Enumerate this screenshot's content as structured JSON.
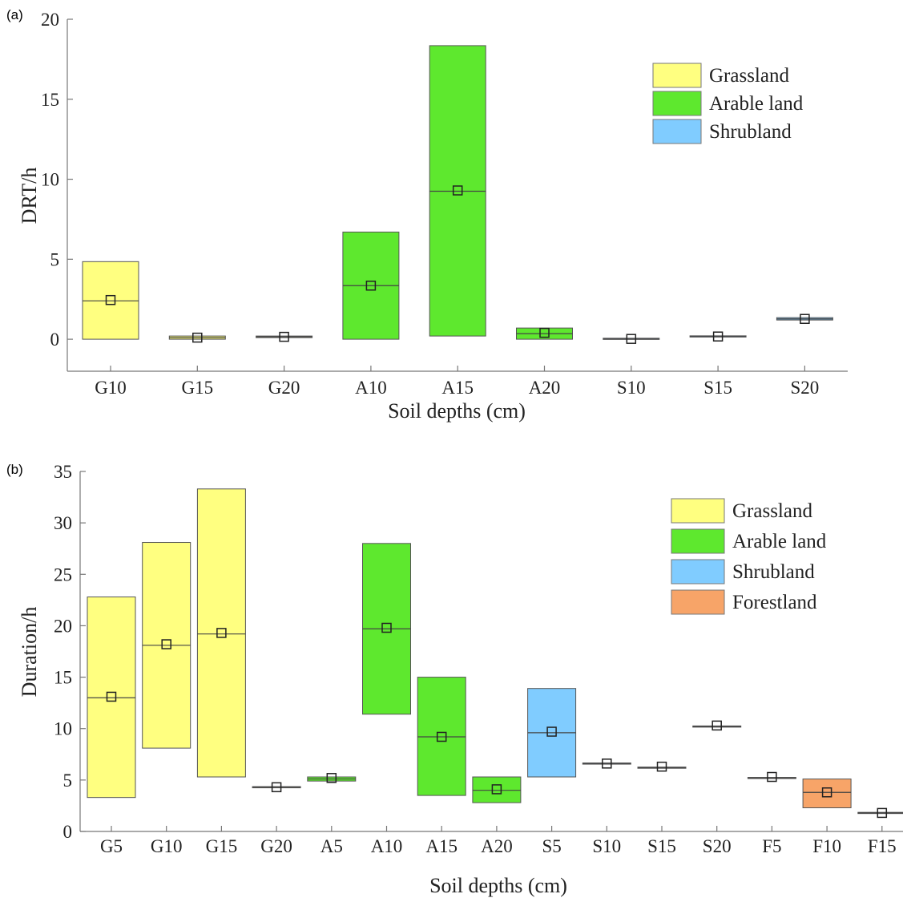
{
  "colors": {
    "Grassland": "#ffff80",
    "Arable land": "#5ee82e",
    "Shrubland": "#80ccff",
    "Forestland": "#f7a468"
  },
  "chart_data": [
    {
      "type": "box",
      "panel_label": "(a)",
      "xlabel": "Soil depths (cm)",
      "ylabel": "DRT/h",
      "ylim": [
        -2,
        20
      ],
      "yticks": [
        0,
        5,
        10,
        15,
        20
      ],
      "legend_position": "top-right",
      "legend": [
        "Grassland",
        "Arable land",
        "Shrubland"
      ],
      "categories": [
        "G10",
        "G15",
        "G20",
        "A10",
        "A15",
        "A20",
        "S10",
        "S15",
        "S20"
      ],
      "groups": [
        "Grassland",
        "Grassland",
        "Grassland",
        "Arable land",
        "Arable land",
        "Arable land",
        "Shrubland",
        "Shrubland",
        "Shrubland"
      ],
      "box_low": [
        0,
        0,
        0.1,
        0,
        0.2,
        0,
        0,
        0.15,
        1.2
      ],
      "box_high": [
        4.85,
        0.2,
        0.2,
        6.7,
        18.35,
        0.7,
        0.05,
        0.2,
        1.35
      ],
      "median": [
        2.4,
        0.1,
        0.15,
        3.35,
        9.25,
        0.35,
        0.02,
        0.17,
        1.27
      ],
      "mean": [
        2.45,
        0.1,
        0.15,
        3.35,
        9.3,
        0.4,
        0.02,
        0.17,
        1.27
      ]
    },
    {
      "type": "box",
      "panel_label": "(b)",
      "xlabel": "Soil depths (cm)",
      "ylabel": "Duration/h",
      "ylim": [
        0,
        35
      ],
      "yticks": [
        0,
        5,
        10,
        15,
        20,
        25,
        30,
        35
      ],
      "legend_position": "top-right",
      "legend": [
        "Grassland",
        "Arable land",
        "Shrubland",
        "Forestland"
      ],
      "categories": [
        "G5",
        "G10",
        "G15",
        "G20",
        "A5",
        "A10",
        "A15",
        "A20",
        "S5",
        "S10",
        "S15",
        "S20",
        "F5",
        "F10",
        "F15"
      ],
      "groups": [
        "Grassland",
        "Grassland",
        "Grassland",
        "Grassland",
        "Arable land",
        "Arable land",
        "Arable land",
        "Arable land",
        "Shrubland",
        "Shrubland",
        "Shrubland",
        "Shrubland",
        "Forestland",
        "Forestland",
        "Forestland"
      ],
      "box_low": [
        3.3,
        8.1,
        5.3,
        4.3,
        4.9,
        11.4,
        3.5,
        2.8,
        5.3,
        6.6,
        6.2,
        10.2,
        5.2,
        2.3,
        1.8
      ],
      "box_high": [
        22.8,
        28.1,
        33.3,
        4.3,
        5.3,
        28.0,
        15.0,
        5.3,
        13.9,
        6.6,
        6.2,
        10.2,
        5.2,
        5.1,
        1.8
      ],
      "median": [
        13.0,
        18.1,
        19.2,
        4.3,
        5.1,
        19.7,
        9.2,
        4.0,
        9.6,
        6.6,
        6.2,
        10.2,
        5.2,
        3.8,
        1.8
      ],
      "mean": [
        13.1,
        18.2,
        19.3,
        4.3,
        5.2,
        19.8,
        9.2,
        4.1,
        9.7,
        6.6,
        6.3,
        10.3,
        5.3,
        3.8,
        1.8
      ]
    }
  ]
}
